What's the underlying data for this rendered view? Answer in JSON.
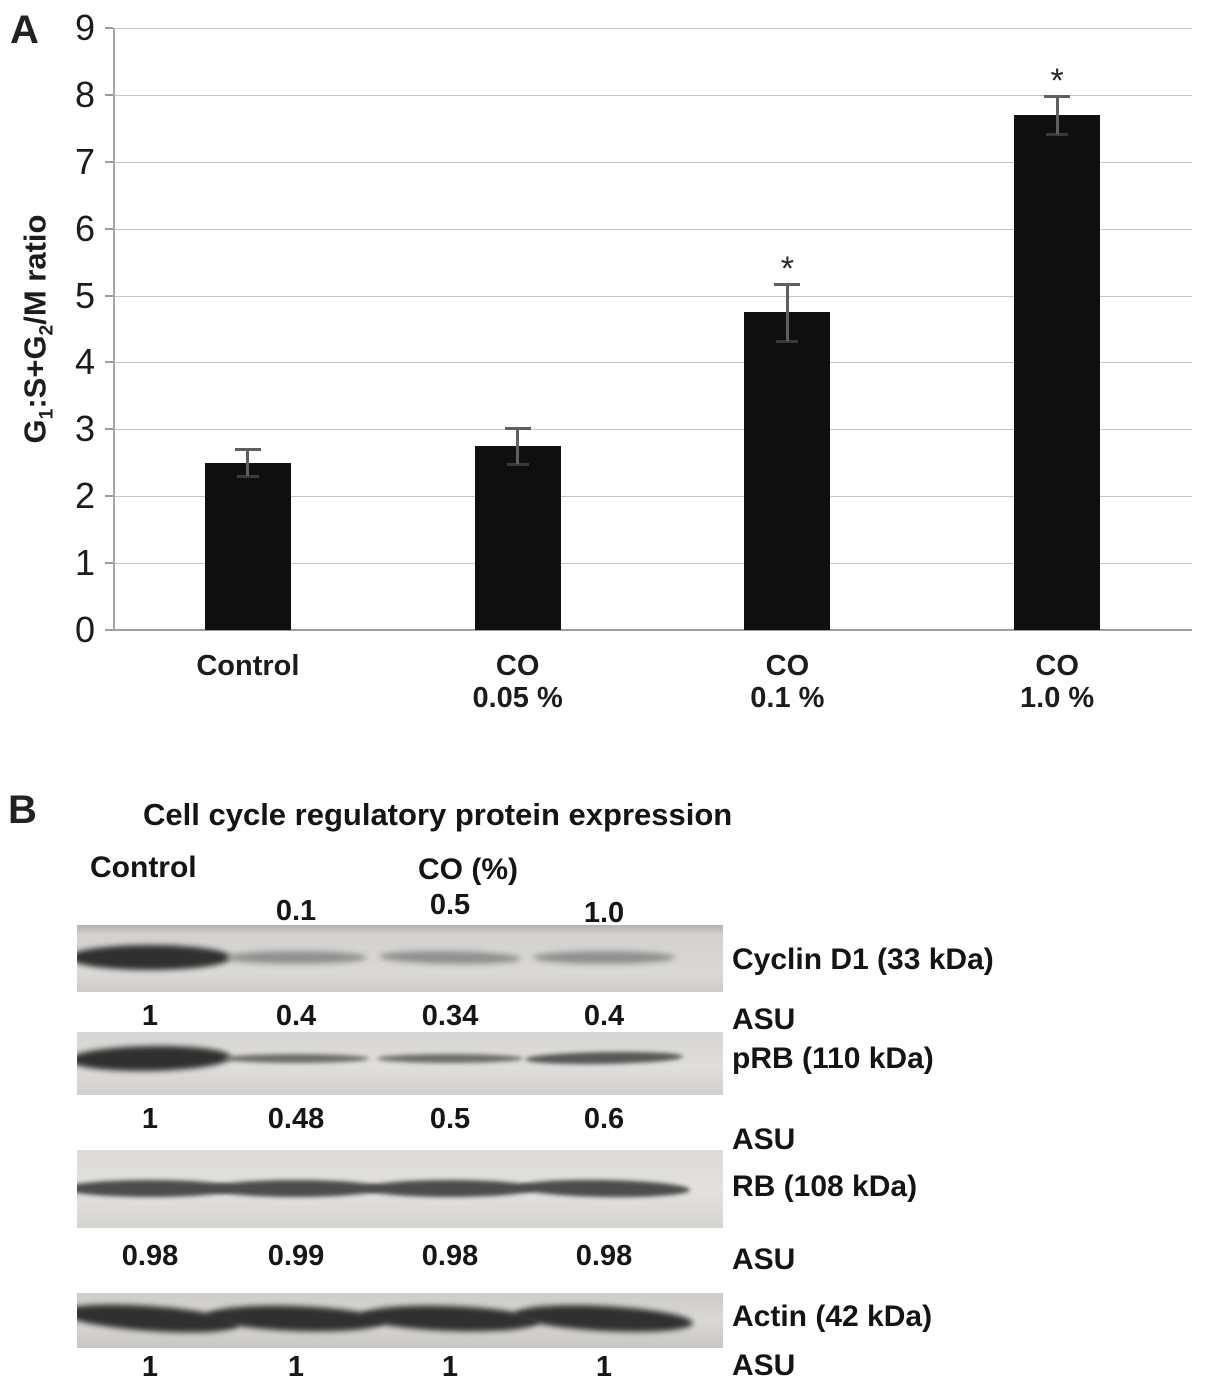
{
  "panel_a": {
    "label": "A",
    "chart_data": {
      "type": "bar",
      "categories": [
        [
          "Control"
        ],
        [
          "CO",
          "0.05 %"
        ],
        [
          "CO",
          "0.1 %"
        ],
        [
          "CO",
          "1.0 %"
        ]
      ],
      "values": [
        2.5,
        2.75,
        4.75,
        7.7
      ],
      "errors": [
        0.2,
        0.27,
        0.43,
        0.28
      ],
      "significant": [
        false,
        false,
        true,
        true
      ],
      "sig_marker": "*",
      "title": "",
      "xlabel": "",
      "ylabel_plain": "G1:S+G2/M ratio",
      "ylabel_segments": [
        {
          "t": "G"
        },
        {
          "t": "1",
          "sub": true
        },
        {
          "t": ":S+G"
        },
        {
          "t": "2",
          "sub": true
        },
        {
          "t": "/M ratio"
        }
      ],
      "ylim": [
        0,
        9
      ],
      "ytick_step": 1,
      "grid": true,
      "legend": false,
      "bar_color": "#0f0f0f",
      "gridline_color": "#c6c6c6"
    }
  },
  "panel_b": {
    "label": "B",
    "title": "Cell cycle regulatory protein expression",
    "header": {
      "control": "Control",
      "co": "CO (%)"
    },
    "lane_labels": [
      "0.1",
      "0.5",
      "1.0"
    ],
    "unit_label": "ASU",
    "rows": [
      {
        "protein": "Cyclin D1 (33 kDa)",
        "asu": [
          "1",
          "0.4",
          "0.34",
          "0.4"
        ],
        "bands": [
          "strong",
          "faint",
          "faint",
          "faint"
        ]
      },
      {
        "protein": "pRB (110 kDa)",
        "asu": [
          "1",
          "0.48",
          "0.5",
          "0.6"
        ],
        "bands": [
          "strong",
          "thin",
          "thin",
          "medium-thin"
        ]
      },
      {
        "protein": "RB (108 kDa)",
        "asu": [
          "0.98",
          "0.99",
          "0.98",
          "0.98"
        ],
        "bands": [
          "medium",
          "medium",
          "medium",
          "medium"
        ]
      },
      {
        "protein": "Actin (42 kDa)",
        "asu": [
          "1",
          "1",
          "1",
          "1"
        ],
        "bands": [
          "strong",
          "strong",
          "strong",
          "strong"
        ]
      }
    ]
  }
}
